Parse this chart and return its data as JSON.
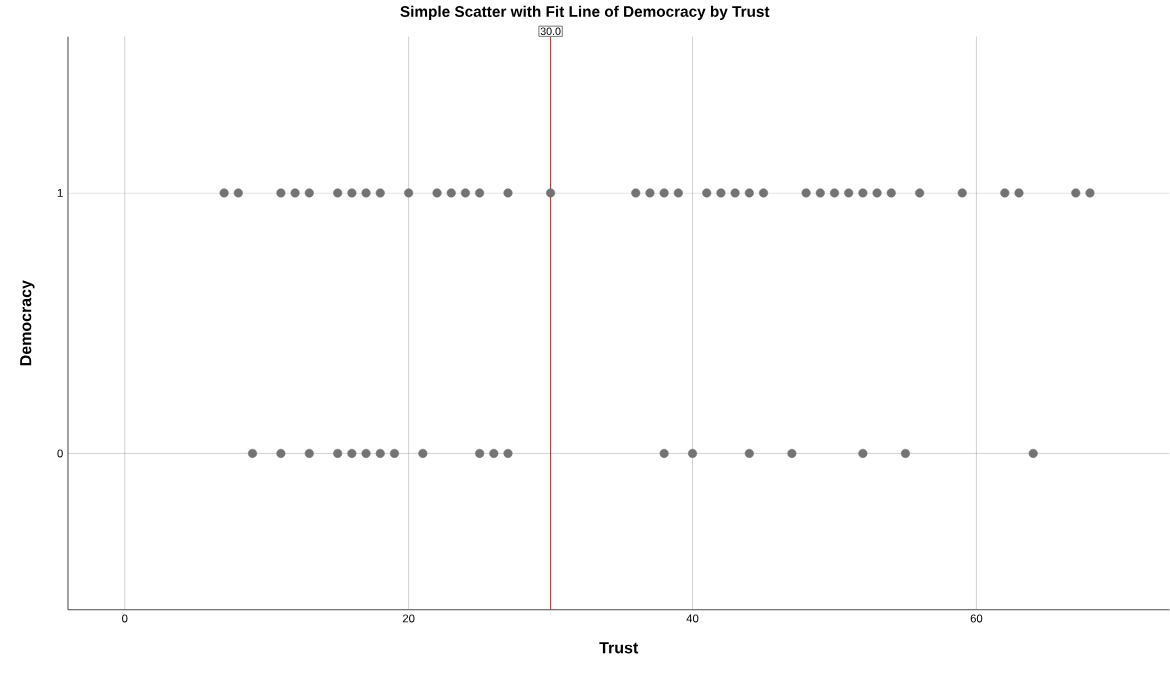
{
  "chart_data": {
    "type": "scatter",
    "title": "Simple Scatter with Fit Line of Democracy by Trust",
    "xlabel": "Trust",
    "ylabel": "Democracy",
    "series": [
      {
        "color": "#737373",
        "x": [
          7,
          8,
          11,
          12,
          13,
          15,
          16,
          17,
          18,
          20,
          22,
          23,
          24,
          25,
          27,
          30,
          36,
          37,
          38,
          39,
          41,
          42,
          43,
          44,
          45,
          48,
          49,
          50,
          51,
          52,
          53,
          54,
          56,
          59,
          62,
          63,
          67,
          68
        ],
        "values": [
          1,
          1,
          1,
          1,
          1,
          1,
          1,
          1,
          1,
          1,
          1,
          1,
          1,
          1,
          1,
          1,
          1,
          1,
          1,
          1,
          1,
          1,
          1,
          1,
          1,
          1,
          1,
          1,
          1,
          1,
          1,
          1,
          1,
          1,
          1,
          1,
          1,
          1
        ]
      },
      {
        "color": "#737373",
        "x": [
          9,
          11,
          13,
          15,
          16,
          17,
          18,
          19,
          21,
          25,
          26,
          27,
          38,
          40,
          44,
          47,
          52,
          55,
          64
        ],
        "values": [
          0,
          0,
          0,
          0,
          0,
          0,
          0,
          0,
          0,
          0,
          0,
          0,
          0,
          0,
          0,
          0,
          0,
          0,
          0
        ]
      }
    ],
    "xlim": [
      -4,
      73.6
    ],
    "ylim": [
      -0.6,
      1.6
    ],
    "xticks": [
      0,
      20,
      40,
      60
    ],
    "yticks": [
      0,
      1
    ],
    "ref_lines": [
      {
        "axis": "x",
        "value": 30,
        "label": "30.0",
        "color": "#d62728"
      }
    ],
    "grid": true,
    "marker": "circle"
  }
}
